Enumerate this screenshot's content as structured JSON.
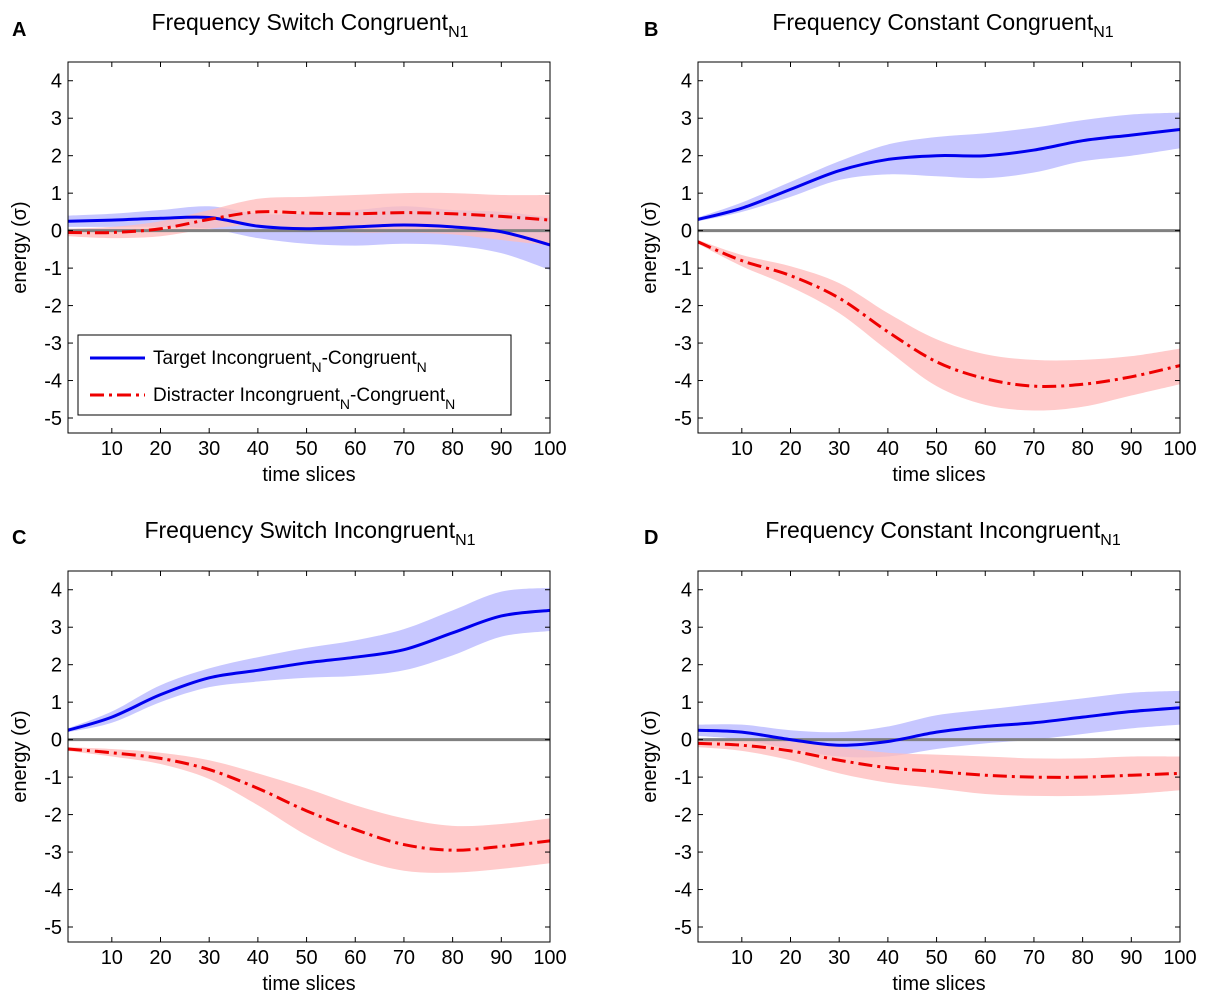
{
  "colors": {
    "target": "#0000ee",
    "target_band": "#b7b7ff",
    "distracter": "#ee0000",
    "distracter_band": "#ffbcbc",
    "zero_line": "#808080"
  },
  "legend": {
    "target": {
      "main": "Target Incongruent",
      "sub1": "N",
      "mid": "-Congruent",
      "sub2": "N"
    },
    "distracter": {
      "main": "Distracter Incongruent",
      "sub1": "N",
      "mid": "-Congruent",
      "sub2": "N"
    }
  },
  "chart_data": [
    {
      "type": "line",
      "panel": "A",
      "title": "Frequency Switch Congruent",
      "title_sub": "N1",
      "xlabel": "time slices",
      "ylabel": "energy (σ)",
      "xlim": [
        1,
        100
      ],
      "ylim": [
        -5.4,
        4.5
      ],
      "xticks": [
        10,
        20,
        30,
        40,
        50,
        60,
        70,
        80,
        90,
        100
      ],
      "yticks": [
        -5,
        -4,
        -3,
        -2,
        -1,
        0,
        1,
        2,
        3,
        4
      ],
      "grid": false,
      "legend_position": "lower-left",
      "x": [
        1,
        10,
        20,
        30,
        40,
        50,
        60,
        70,
        80,
        90,
        100
      ],
      "series": [
        {
          "name": "Target Incongruent-Congruent",
          "style": "solid",
          "values": [
            0.25,
            0.28,
            0.33,
            0.35,
            0.12,
            0.05,
            0.1,
            0.15,
            0.1,
            -0.03,
            -0.38
          ],
          "lower": [
            0.1,
            0.1,
            0.1,
            0.05,
            -0.2,
            -0.35,
            -0.4,
            -0.35,
            -0.4,
            -0.6,
            -1.05
          ],
          "upper": [
            0.4,
            0.45,
            0.55,
            0.65,
            0.45,
            0.45,
            0.55,
            0.65,
            0.55,
            0.5,
            0.35
          ]
        },
        {
          "name": "Distracter Incongruent-Congruent",
          "style": "dashdot",
          "values": [
            -0.05,
            -0.05,
            0.05,
            0.3,
            0.5,
            0.47,
            0.45,
            0.48,
            0.45,
            0.38,
            0.28
          ],
          "lower": [
            -0.15,
            -0.2,
            -0.15,
            0.05,
            0.15,
            0.05,
            -0.05,
            -0.05,
            -0.1,
            -0.25,
            -0.4
          ],
          "upper": [
            0.05,
            0.1,
            0.25,
            0.55,
            0.85,
            0.9,
            0.95,
            1.0,
            1.0,
            0.95,
            0.95
          ]
        }
      ]
    },
    {
      "type": "line",
      "panel": "B",
      "title": "Frequency Constant Congruent",
      "title_sub": "N1",
      "xlabel": "time slices",
      "ylabel": "energy (σ)",
      "xlim": [
        1,
        100
      ],
      "ylim": [
        -5.4,
        4.5
      ],
      "xticks": [
        10,
        20,
        30,
        40,
        50,
        60,
        70,
        80,
        90,
        100
      ],
      "yticks": [
        -5,
        -4,
        -3,
        -2,
        -1,
        0,
        1,
        2,
        3,
        4
      ],
      "grid": false,
      "x": [
        1,
        10,
        20,
        30,
        40,
        50,
        60,
        70,
        80,
        90,
        100
      ],
      "series": [
        {
          "name": "Target Incongruent-Congruent",
          "style": "solid",
          "values": [
            0.3,
            0.6,
            1.1,
            1.6,
            1.9,
            2.0,
            2.0,
            2.15,
            2.4,
            2.55,
            2.7
          ],
          "lower": [
            0.25,
            0.5,
            0.9,
            1.35,
            1.5,
            1.45,
            1.4,
            1.55,
            1.85,
            2.0,
            2.2
          ],
          "upper": [
            0.35,
            0.75,
            1.3,
            1.85,
            2.3,
            2.5,
            2.6,
            2.75,
            2.95,
            3.1,
            3.15
          ]
        },
        {
          "name": "Distracter Incongruent-Congruent",
          "style": "dashdot",
          "values": [
            -0.3,
            -0.8,
            -1.2,
            -1.8,
            -2.7,
            -3.5,
            -3.95,
            -4.15,
            -4.1,
            -3.9,
            -3.6
          ],
          "lower": [
            -0.35,
            -0.95,
            -1.5,
            -2.2,
            -3.2,
            -4.15,
            -4.65,
            -4.8,
            -4.7,
            -4.4,
            -4.1
          ],
          "upper": [
            -0.25,
            -0.65,
            -0.95,
            -1.4,
            -2.2,
            -2.9,
            -3.3,
            -3.45,
            -3.45,
            -3.35,
            -3.15
          ]
        }
      ]
    },
    {
      "type": "line",
      "panel": "C",
      "title": "Frequency Switch Incongruent",
      "title_sub": "N1",
      "xlabel": "time slices",
      "ylabel": "energy (σ)",
      "xlim": [
        1,
        100
      ],
      "ylim": [
        -5.4,
        4.5
      ],
      "xticks": [
        10,
        20,
        30,
        40,
        50,
        60,
        70,
        80,
        90,
        100
      ],
      "yticks": [
        -5,
        -4,
        -3,
        -2,
        -1,
        0,
        1,
        2,
        3,
        4
      ],
      "grid": false,
      "x": [
        1,
        10,
        20,
        30,
        40,
        50,
        60,
        70,
        80,
        90,
        100
      ],
      "series": [
        {
          "name": "Target Incongruent-Congruent",
          "style": "solid",
          "values": [
            0.25,
            0.6,
            1.2,
            1.65,
            1.85,
            2.05,
            2.2,
            2.4,
            2.85,
            3.3,
            3.45
          ],
          "lower": [
            0.2,
            0.45,
            1.0,
            1.4,
            1.55,
            1.65,
            1.7,
            1.85,
            2.25,
            2.75,
            2.9
          ],
          "upper": [
            0.3,
            0.75,
            1.45,
            1.9,
            2.2,
            2.45,
            2.65,
            2.95,
            3.45,
            3.95,
            4.05
          ]
        },
        {
          "name": "Distracter Incongruent-Congruent",
          "style": "dashdot",
          "values": [
            -0.25,
            -0.35,
            -0.5,
            -0.8,
            -1.3,
            -1.9,
            -2.4,
            -2.8,
            -2.95,
            -2.85,
            -2.7
          ],
          "lower": [
            -0.3,
            -0.45,
            -0.65,
            -1.05,
            -1.75,
            -2.55,
            -3.15,
            -3.5,
            -3.55,
            -3.45,
            -3.3
          ],
          "upper": [
            -0.2,
            -0.25,
            -0.35,
            -0.55,
            -0.9,
            -1.3,
            -1.75,
            -2.1,
            -2.3,
            -2.25,
            -2.1
          ]
        }
      ]
    },
    {
      "type": "line",
      "panel": "D",
      "title": "Frequency Constant Incongruent",
      "title_sub": "N1",
      "xlabel": "time slices",
      "ylabel": "energy (σ)",
      "xlim": [
        1,
        100
      ],
      "ylim": [
        -5.4,
        4.5
      ],
      "xticks": [
        10,
        20,
        30,
        40,
        50,
        60,
        70,
        80,
        90,
        100
      ],
      "yticks": [
        -5,
        -4,
        -3,
        -2,
        -1,
        0,
        1,
        2,
        3,
        4
      ],
      "grid": false,
      "x": [
        1,
        10,
        20,
        30,
        40,
        50,
        60,
        70,
        80,
        90,
        100
      ],
      "series": [
        {
          "name": "Target Incongruent-Congruent",
          "style": "solid",
          "values": [
            0.25,
            0.2,
            0.0,
            -0.15,
            -0.05,
            0.2,
            0.35,
            0.45,
            0.6,
            0.75,
            0.85
          ],
          "lower": [
            0.1,
            0.0,
            -0.25,
            -0.45,
            -0.45,
            -0.25,
            -0.1,
            0.0,
            0.15,
            0.3,
            0.4
          ],
          "upper": [
            0.4,
            0.4,
            0.25,
            0.2,
            0.35,
            0.65,
            0.8,
            0.95,
            1.1,
            1.25,
            1.3
          ]
        },
        {
          "name": "Distracter Incongruent-Congruent",
          "style": "dashdot",
          "values": [
            -0.1,
            -0.15,
            -0.3,
            -0.55,
            -0.75,
            -0.85,
            -0.95,
            -1.0,
            -1.0,
            -0.95,
            -0.9
          ],
          "lower": [
            -0.2,
            -0.3,
            -0.55,
            -0.9,
            -1.15,
            -1.3,
            -1.45,
            -1.5,
            -1.5,
            -1.45,
            -1.35
          ],
          "upper": [
            0.0,
            0.0,
            -0.05,
            -0.2,
            -0.35,
            -0.4,
            -0.45,
            -0.5,
            -0.5,
            -0.45,
            -0.45
          ]
        }
      ]
    }
  ]
}
